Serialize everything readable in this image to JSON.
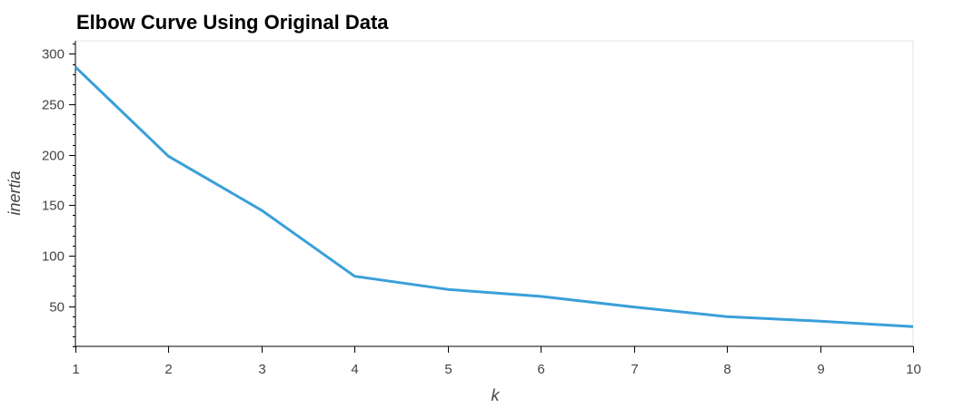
{
  "chart_data": {
    "type": "line",
    "title": "Elbow Curve Using Original Data",
    "xlabel": "k",
    "ylabel": "inertia",
    "x": [
      1,
      2,
      3,
      4,
      5,
      6,
      7,
      8,
      9,
      10
    ],
    "series": [
      {
        "values": [
          287,
          198.5,
          145,
          79.5,
          66.5,
          59.5,
          49,
          39.5,
          35,
          29.5
        ],
        "color": "#3a9fd9"
      }
    ],
    "xlim": [
      1,
      10
    ],
    "ylim": [
      10,
      313
    ],
    "xticks": [
      1,
      2,
      3,
      4,
      5,
      6,
      7,
      8,
      9,
      10
    ],
    "yticks": [
      50,
      100,
      150,
      200,
      250,
      300
    ],
    "grid": false
  }
}
